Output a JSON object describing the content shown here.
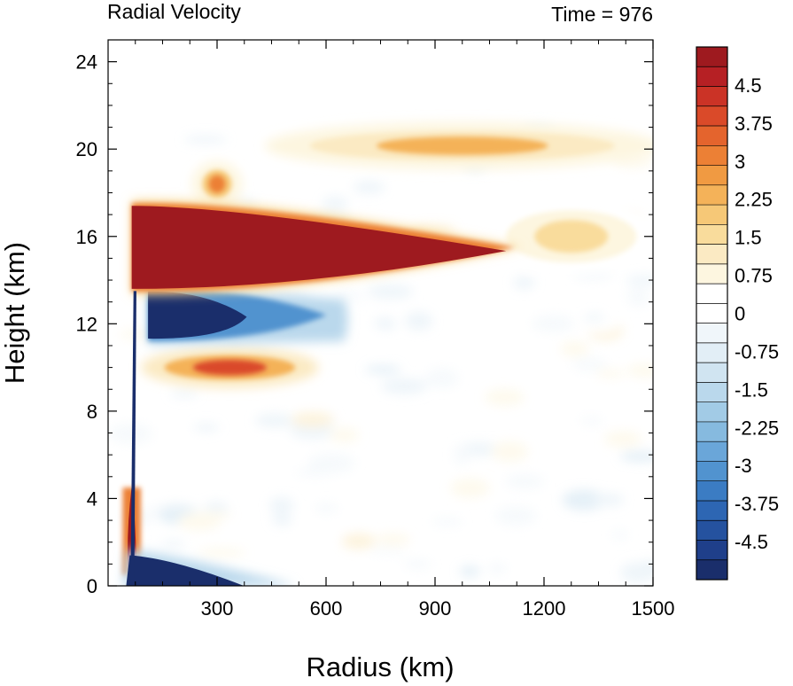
{
  "chart_data": {
    "type": "heatmap",
    "title_left": "Radial Velocity",
    "title_right": "Time = 976",
    "xlabel": "Radius (km)",
    "ylabel": "Height (km)",
    "xlim": [
      0,
      1500
    ],
    "ylim": [
      0,
      25
    ],
    "x_ticks": [
      "300",
      "600",
      "900",
      "1200",
      "1500"
    ],
    "y_ticks": [
      "0",
      "4",
      "8",
      "12",
      "16",
      "20",
      "24"
    ],
    "colorbar": {
      "tick_labels": [
        "4.5",
        "3.75",
        "3",
        "2.25",
        "1.5",
        "0.75",
        "0",
        "-0.75",
        "-1.5",
        "-2.25",
        "-3",
        "-3.75",
        "-4.5"
      ],
      "range": [
        -5.25,
        5.25
      ],
      "colors": [
        "#1a2e6b",
        "#1f3f8a",
        "#25529f",
        "#2d66b3",
        "#3b7cc3",
        "#5193cf",
        "#6aa6d9",
        "#86badf",
        "#a2cbe6",
        "#bad8ec",
        "#d0e4f1",
        "#e2eef6",
        "#f0f6fa",
        "#ffffff",
        "#ffffff",
        "#fdf6e0",
        "#fbeac3",
        "#f9dc9c",
        "#f6c877",
        "#f4b259",
        "#f09a42",
        "#ec8035",
        "#e4642d",
        "#da4a29",
        "#cb3326",
        "#b62024",
        "#9e1a1f"
      ]
    },
    "features": [
      {
        "name": "upper outflow (positive)",
        "r_range": [
          65,
          1120
        ],
        "z_range": [
          13.6,
          17.4
        ],
        "max_value": 5.25
      },
      {
        "name": "mid-upper inflow (negative)",
        "r_range": [
          110,
          650
        ],
        "z_range": [
          11.2,
          13.6
        ],
        "min_value": -5.25
      },
      {
        "name": "mid-level outflow (positive)",
        "r_range": [
          110,
          560
        ],
        "z_range": [
          9.3,
          10.7
        ],
        "max_value": 3.75
      },
      {
        "name": "boundary layer inflow (negative)",
        "r_range": [
          40,
          520
        ],
        "z_range": [
          0,
          1.4
        ],
        "min_value": -5.25
      },
      {
        "name": "low-level eyewall outflow (positive)",
        "r_range": [
          50,
          80
        ],
        "z_range": [
          0.5,
          4.5
        ],
        "max_value": 5.25
      },
      {
        "name": "upper patch (positive)",
        "r_range": [
          250,
          350
        ],
        "z_range": [
          17.6,
          19.2
        ],
        "max_value": 3.0
      },
      {
        "name": "tropopause band (positive)",
        "r_range": [
          450,
          1500
        ],
        "z_range": [
          19.3,
          21.0
        ],
        "max_value": 2.25
      },
      {
        "name": "outer weak outflow (positive)",
        "r_range": [
          1050,
          1500
        ],
        "z_range": [
          14.5,
          17.5
        ],
        "max_value": 1.5
      }
    ]
  }
}
